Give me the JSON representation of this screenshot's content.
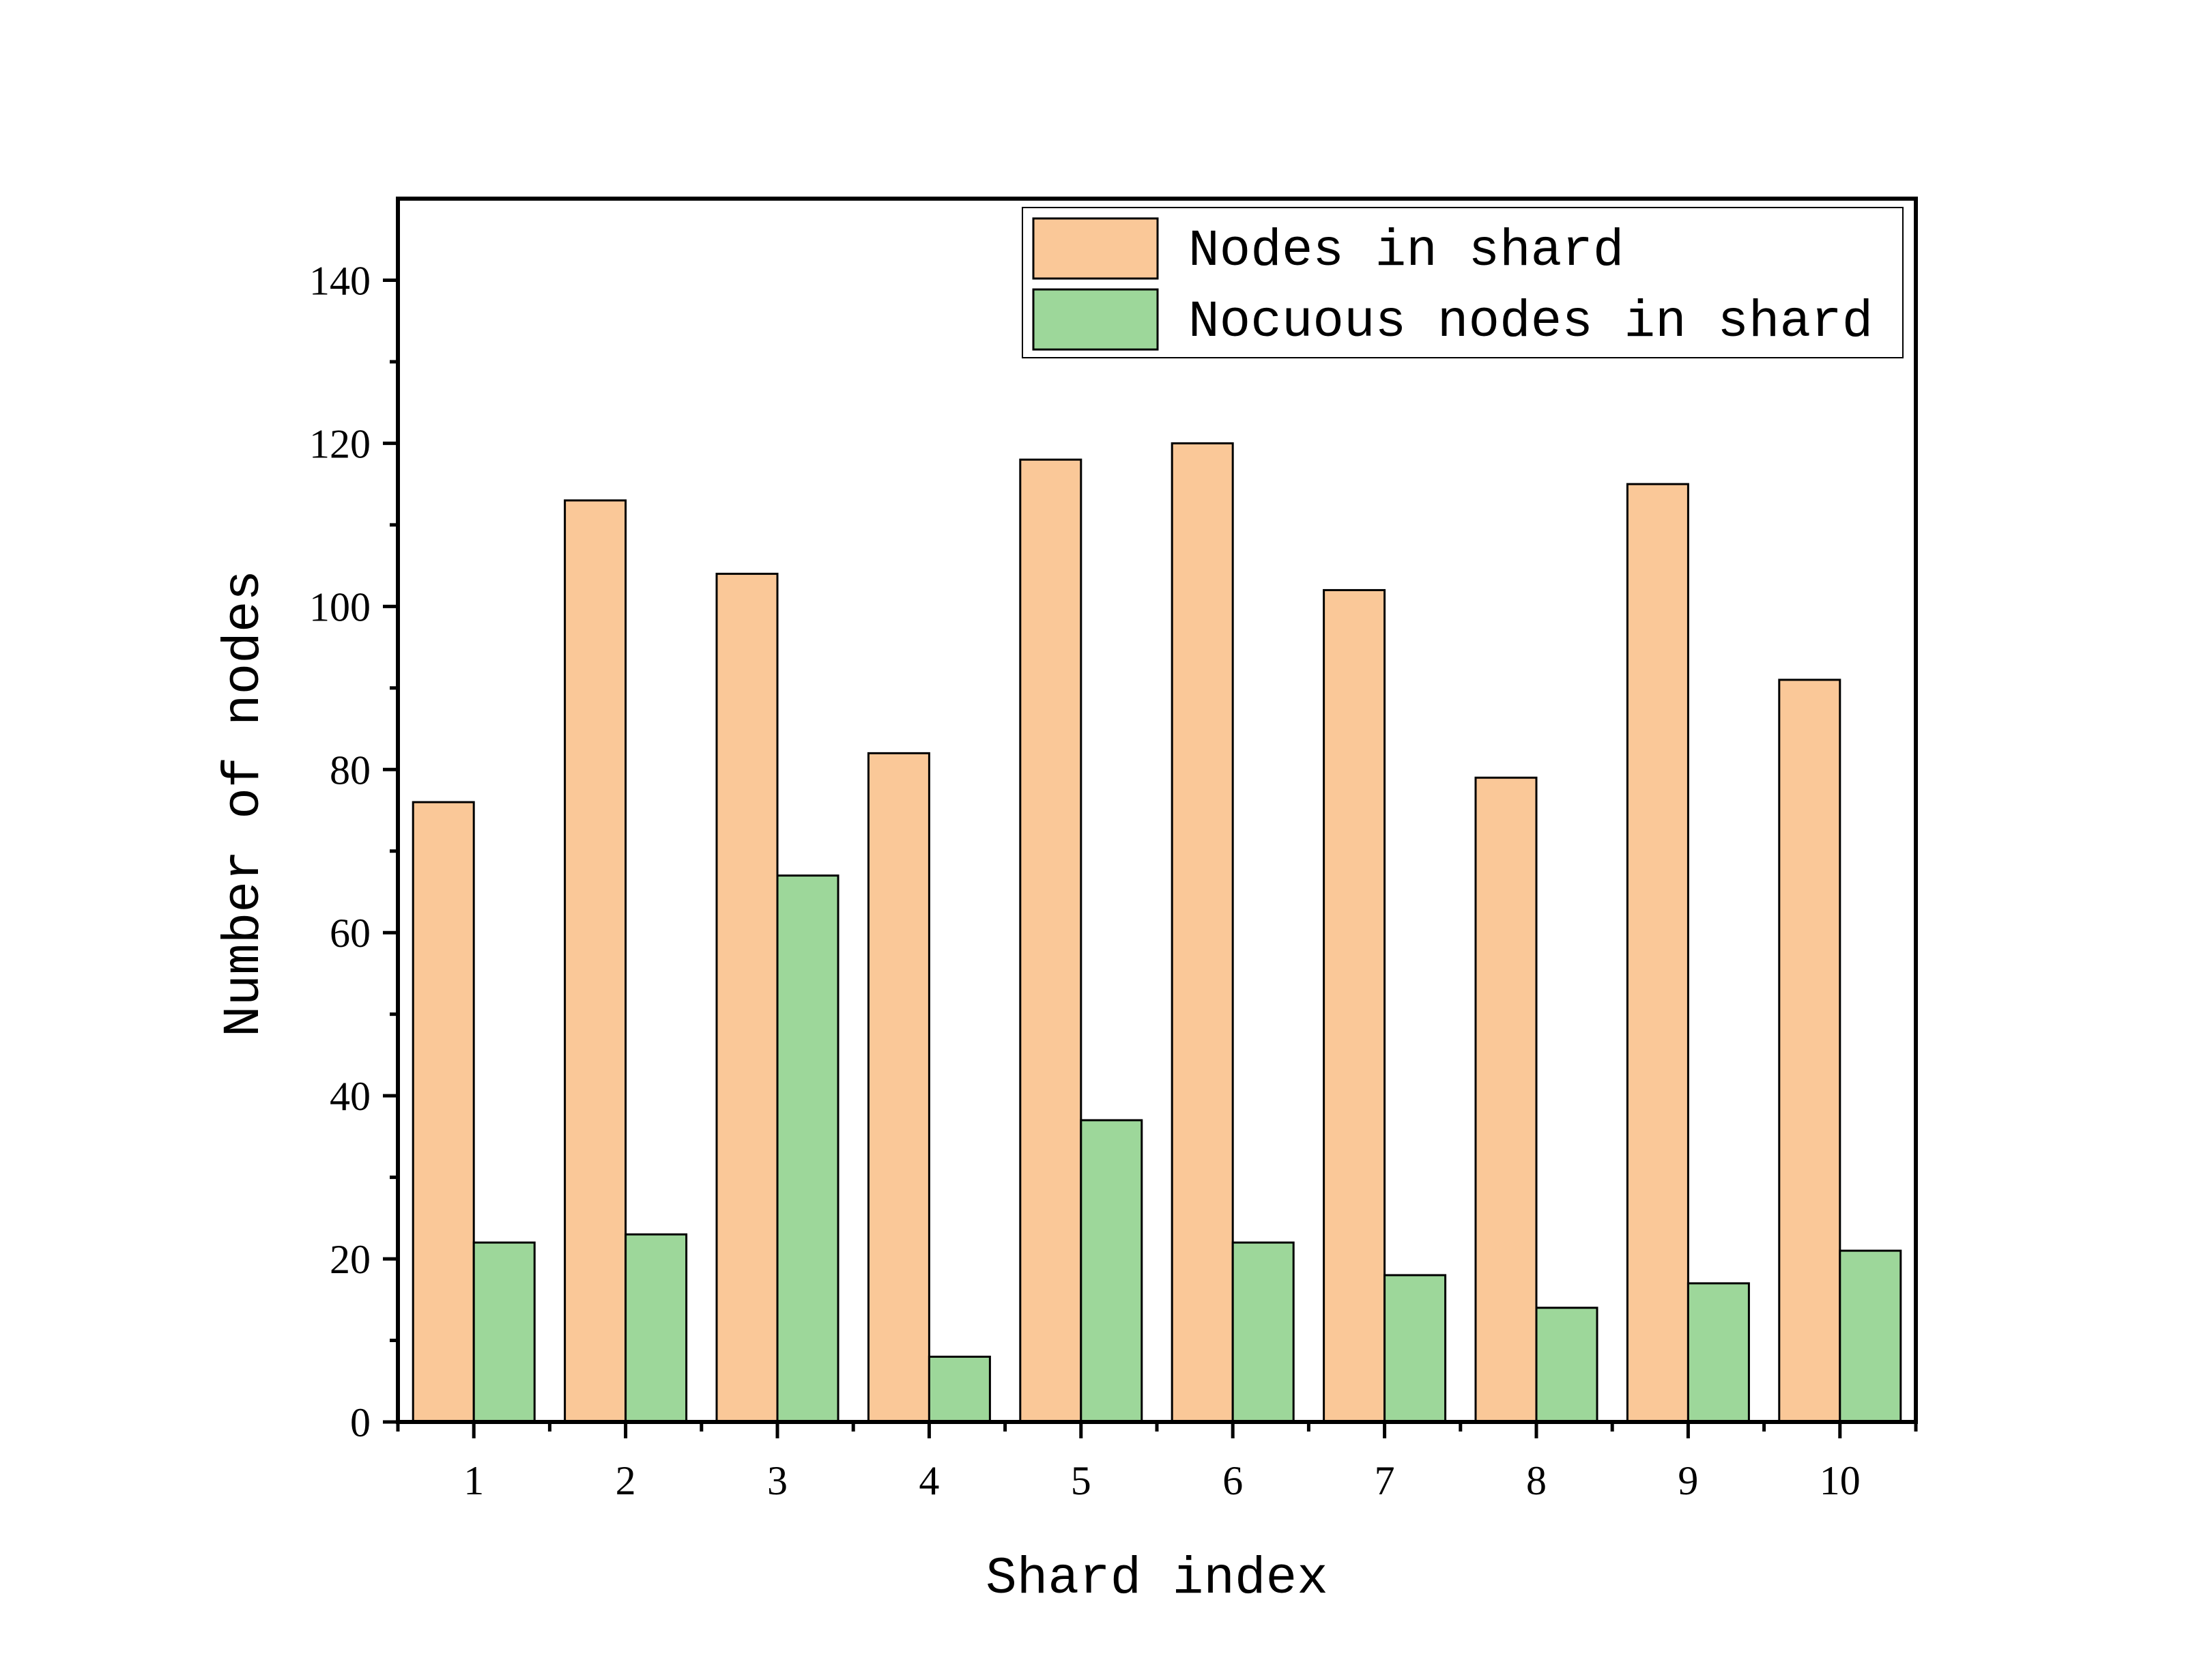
{
  "chart_data": {
    "type": "bar",
    "categories": [
      "1",
      "2",
      "3",
      "4",
      "5",
      "6",
      "7",
      "8",
      "9",
      "10"
    ],
    "series": [
      {
        "name": "Nodes in shard",
        "values": [
          76,
          113,
          104,
          82,
          118,
          120,
          102,
          79,
          115,
          91
        ],
        "color": "#FAC898"
      },
      {
        "name": "Nocuous nodes in shard",
        "values": [
          22,
          23,
          67,
          8,
          37,
          22,
          18,
          14,
          17,
          21
        ],
        "color": "#9DD79A"
      }
    ],
    "xlabel": "Shard index",
    "ylabel": "Number of nodes",
    "ylim": [
      0,
      150
    ],
    "yticks": [
      0,
      20,
      40,
      60,
      80,
      100,
      120,
      140
    ],
    "yticks_minor_step": 10,
    "grid": false,
    "legend_position": "top-right"
  }
}
